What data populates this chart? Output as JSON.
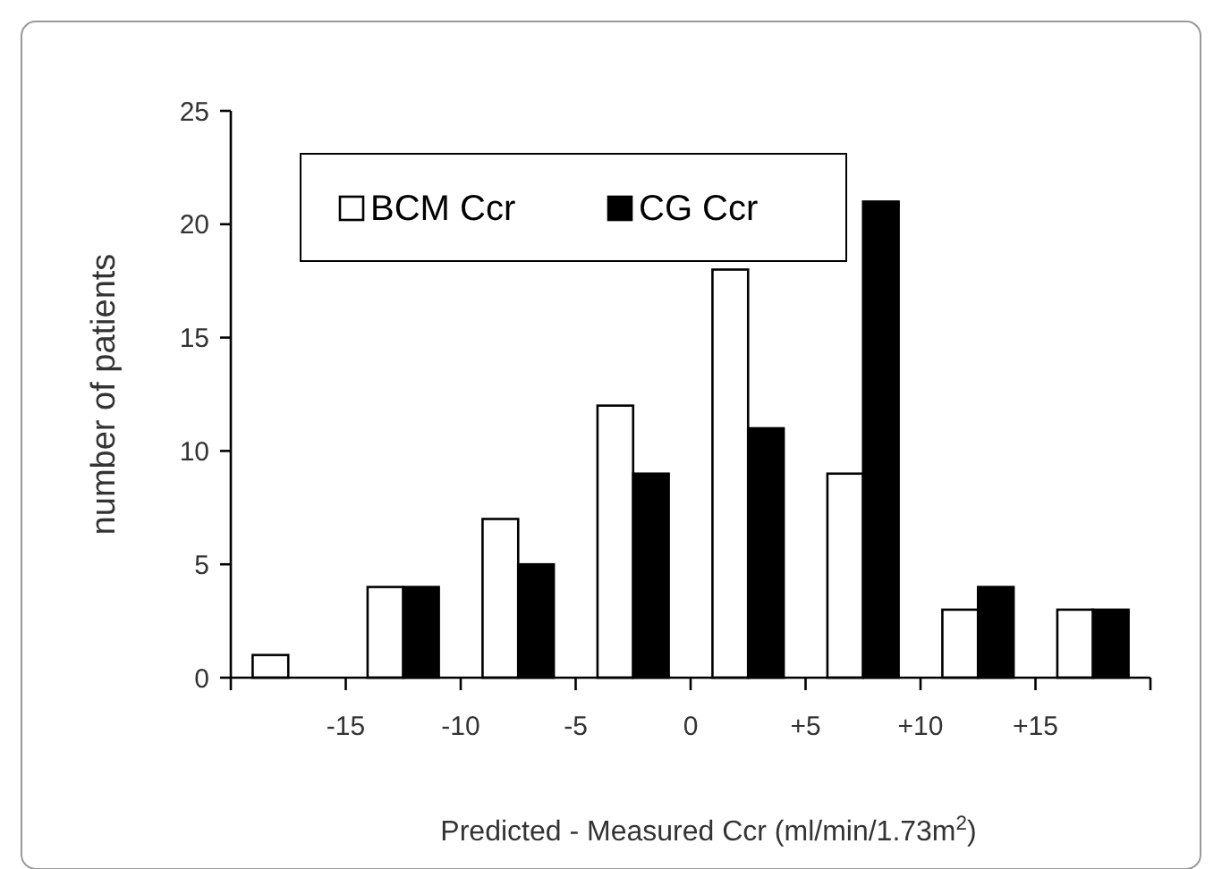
{
  "chart_data": {
    "type": "bar",
    "xlabel": "Predicted - Measured Ccr (ml/min/1.73m$^{2}$)",
    "ylabel": "number of patients",
    "x": [
      -17.5,
      -12.5,
      -7.5,
      -2.5,
      2.5,
      7.5,
      12.5,
      17.5
    ],
    "series": [
      {
        "name": "BCM Ccr",
        "color": "#ffffff",
        "values": [
          1,
          4,
          7,
          12,
          18,
          9,
          3,
          3
        ]
      },
      {
        "name": "CG Ccr",
        "color": "#000000",
        "values": [
          0,
          4,
          5,
          9,
          11,
          21,
          4,
          3
        ]
      }
    ],
    "xlim": [
      -20,
      20
    ],
    "xticks": [
      {
        "value": -20,
        "label": null
      },
      -15,
      -10,
      -5,
      0,
      {
        "value": 5,
        "label": "+5"
      },
      {
        "value": 10,
        "label": "+10"
      },
      {
        "value": 15,
        "label": "+15"
      },
      {
        "value": 20,
        "label": null
      }
    ],
    "ylim": [
      0,
      25
    ],
    "yticks": [
      0,
      5,
      10,
      15,
      20,
      25
    ],
    "grid": false,
    "legend": "top left"
  }
}
